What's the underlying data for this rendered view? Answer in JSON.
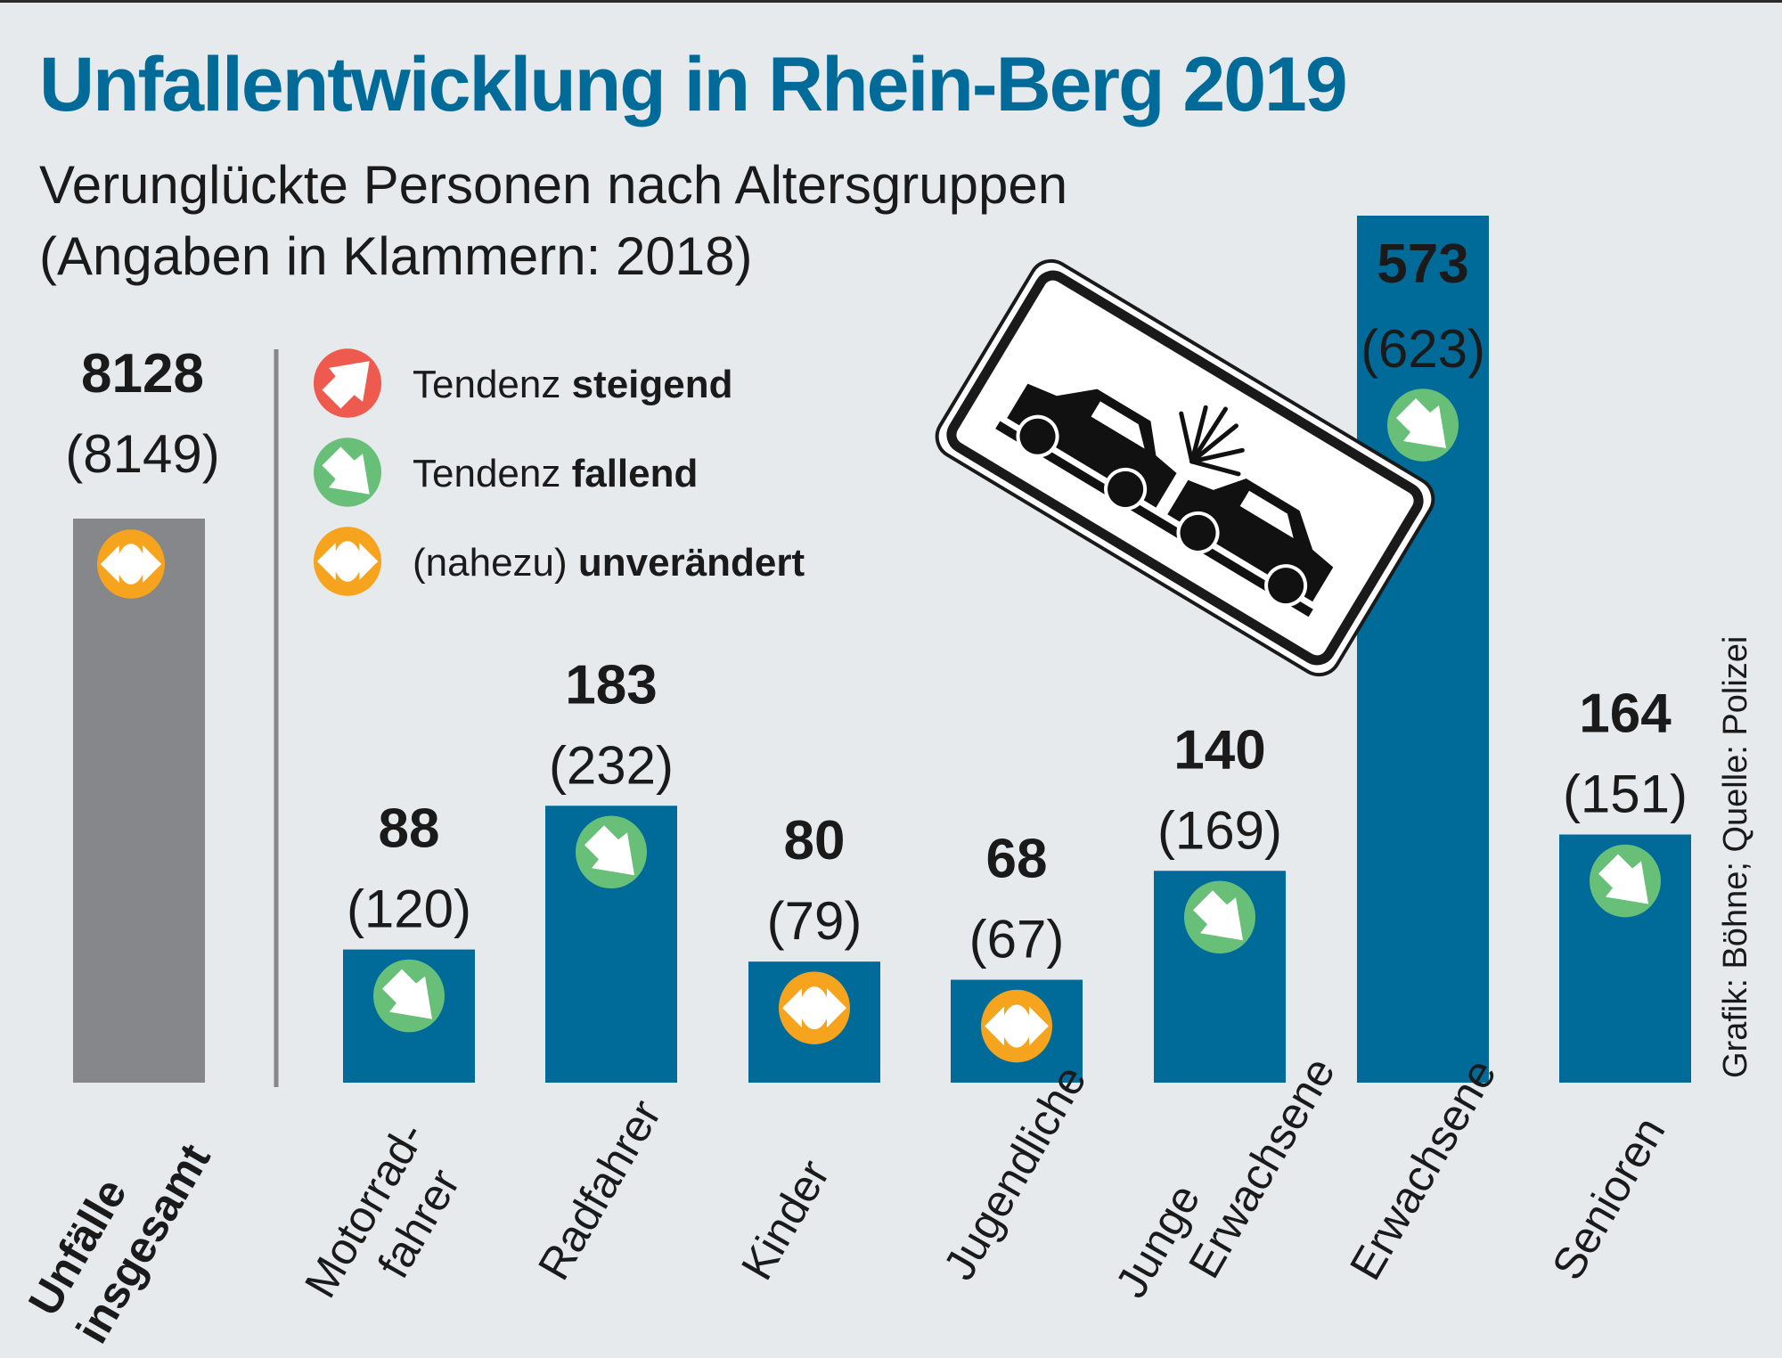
{
  "header": {
    "title": "Unfallentwicklung in Rhein-Berg 2019",
    "subtitle_line1": "Verunglückte Personen nach Altersgruppen",
    "subtitle_line2": "(Angaben in Klammern: 2018)"
  },
  "legend": [
    {
      "trend": "up",
      "icon": "arrow-up-right-icon",
      "label_normal": "Tendenz ",
      "label_bold": "steigend",
      "color": "#ef5a4f"
    },
    {
      "trend": "down",
      "icon": "arrow-down-right-icon",
      "label_normal": "Tendenz ",
      "label_bold": "fallend",
      "color": "#68bf78"
    },
    {
      "trend": "flat",
      "icon": "double-arrow-horizontal-icon",
      "label_normal": "(nahezu) ",
      "label_bold": "unverändert",
      "color": "#f6a31d"
    }
  ],
  "credit": "Grafik: Böhne; Quelle: Polizei",
  "colors": {
    "title": "#006b99",
    "bar": "#006b99",
    "total_bar": "#85878b",
    "background": "#e6eaed",
    "up": "#ef5a4f",
    "down": "#68bf78",
    "flat": "#f6a31d"
  },
  "chart_data": {
    "type": "bar",
    "title": "Unfallentwicklung in Rhein-Berg 2019",
    "subtitle": "Verunglückte Personen nach Altersgruppen (Angaben in Klammern: 2018)",
    "xlabel": "",
    "ylabel": "",
    "grid": false,
    "legend_position": "top-left",
    "total": {
      "label_lines": [
        "Unfälle",
        "insgesamt"
      ],
      "value_2019": 8128,
      "value_2018": 8149,
      "trend": "flat"
    },
    "categories": [
      {
        "label_lines": [
          "Motorrad-",
          "fahrer"
        ],
        "value_2019": 88,
        "value_2018": 120,
        "trend": "down"
      },
      {
        "label_lines": [
          "Radfahrer"
        ],
        "value_2019": 183,
        "value_2018": 232,
        "trend": "down"
      },
      {
        "label_lines": [
          "Kinder"
        ],
        "value_2019": 80,
        "value_2018": 79,
        "trend": "flat"
      },
      {
        "label_lines": [
          "Jugendliche"
        ],
        "value_2019": 68,
        "value_2018": 67,
        "trend": "flat"
      },
      {
        "label_lines": [
          "Junge",
          "Erwachsene"
        ],
        "value_2019": 140,
        "value_2018": 169,
        "trend": "down"
      },
      {
        "label_lines": [
          "Erwachsene"
        ],
        "value_2019": 573,
        "value_2018": 623,
        "trend": "down"
      },
      {
        "label_lines": [
          "Senioren"
        ],
        "value_2019": 164,
        "value_2018": 151,
        "trend": "up-listed-as-down"
      }
    ],
    "ylim": [
      0,
      573
    ]
  }
}
